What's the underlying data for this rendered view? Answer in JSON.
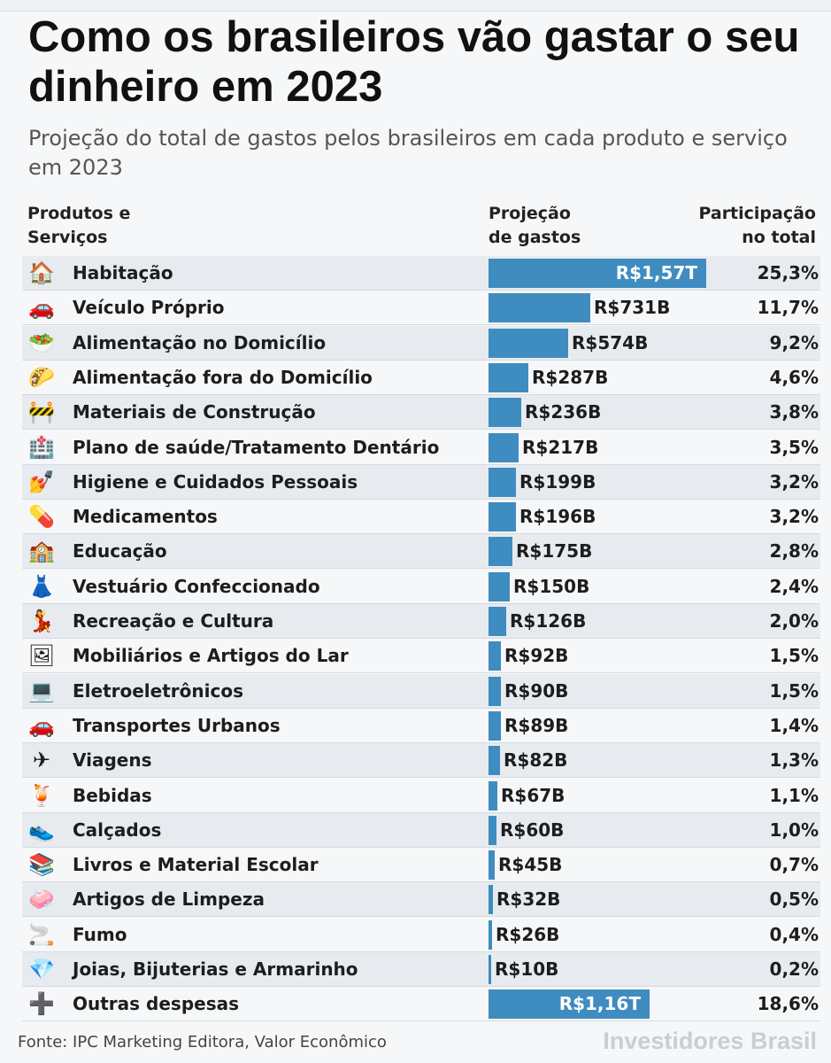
{
  "title": "Como os brasileiros vão gastar o seu dinheiro em 2023",
  "subtitle": "Projeção do total de gastos pelos brasileiros em cada produto e serviço em 2023",
  "headers": {
    "products": [
      "Produtos e",
      "Serviços"
    ],
    "projection": [
      "Projeção",
      "de gastos"
    ],
    "share": [
      "Participação",
      "no total"
    ]
  },
  "source": "Fonte: IPC Marketing Editora, Valor Econômico",
  "brand": "Investidores Brasil",
  "colors": {
    "bar": "#3f8cc0",
    "row_alt": "#e7ebef"
  },
  "chart_data": {
    "type": "bar",
    "orientation": "horizontal",
    "unit": "R$ bilhões",
    "categories": [
      "Habitação",
      "Veículo Próprio",
      "Alimentação no Domicílio",
      "Alimentação fora do Domicílio",
      "Materiais de Construção",
      "Plano de saúde/Tratamento Dentário",
      "Higiene e Cuidados Pessoais",
      "Medicamentos",
      "Educação",
      "Vestuário Confeccionado",
      "Recreação e Cultura",
      "Mobiliários e Artigos do Lar",
      "Eletroeletrônicos",
      "Transportes Urbanos",
      "Viagens",
      "Bebidas",
      "Calçados",
      "Livros e Material Escolar",
      "Artigos de Limpeza",
      "Fumo",
      "Joias, Bijuterias e Armarinho",
      "Outras despesas"
    ],
    "values": [
      1570,
      731,
      574,
      287,
      236,
      217,
      199,
      196,
      175,
      150,
      126,
      92,
      90,
      89,
      82,
      67,
      60,
      45,
      32,
      26,
      10,
      1160
    ],
    "value_labels": [
      "R$1,57T",
      "R$731B",
      "R$574B",
      "R$287B",
      "R$236B",
      "R$217B",
      "R$199B",
      "R$196B",
      "R$175B",
      "R$150B",
      "R$126B",
      "R$92B",
      "R$90B",
      "R$89B",
      "R$82B",
      "R$67B",
      "R$60B",
      "R$45B",
      "R$32B",
      "R$26B",
      "R$10B",
      "R$1,16T"
    ],
    "share_labels": [
      "25,3%",
      "11,7%",
      "9,2%",
      "4,6%",
      "3,8%",
      "3,5%",
      "3,2%",
      "3,2%",
      "2,8%",
      "2,4%",
      "2,0%",
      "1,5%",
      "1,5%",
      "1,4%",
      "1,3%",
      "1,1%",
      "1,0%",
      "0,7%",
      "0,5%",
      "0,4%",
      "0,2%",
      "18,6%"
    ],
    "icons": [
      "house-icon",
      "car-icon",
      "salad-icon",
      "taco-icon",
      "construction-barrier-icon",
      "hospital-icon",
      "nail-polish-icon",
      "pill-icon",
      "school-icon",
      "dress-icon",
      "dancer-icon",
      "framed-picture-icon",
      "laptop-icon",
      "car-icon",
      "airplane-icon",
      "tropical-drink-icon",
      "sneaker-icon",
      "books-icon",
      "soap-icon",
      "cigarette-icon",
      "gem-icon",
      "plus-icon"
    ],
    "icon_glyphs": [
      "🏠",
      "🚗",
      "🥗",
      "🌮",
      "🚧",
      "🏥",
      "💅",
      "💊",
      "🏫",
      "👗",
      "💃",
      "🖼",
      "💻",
      "🚗",
      "✈",
      "🍹",
      "👟",
      "📚",
      "🧼",
      "🚬",
      "💎",
      "➕"
    ]
  }
}
